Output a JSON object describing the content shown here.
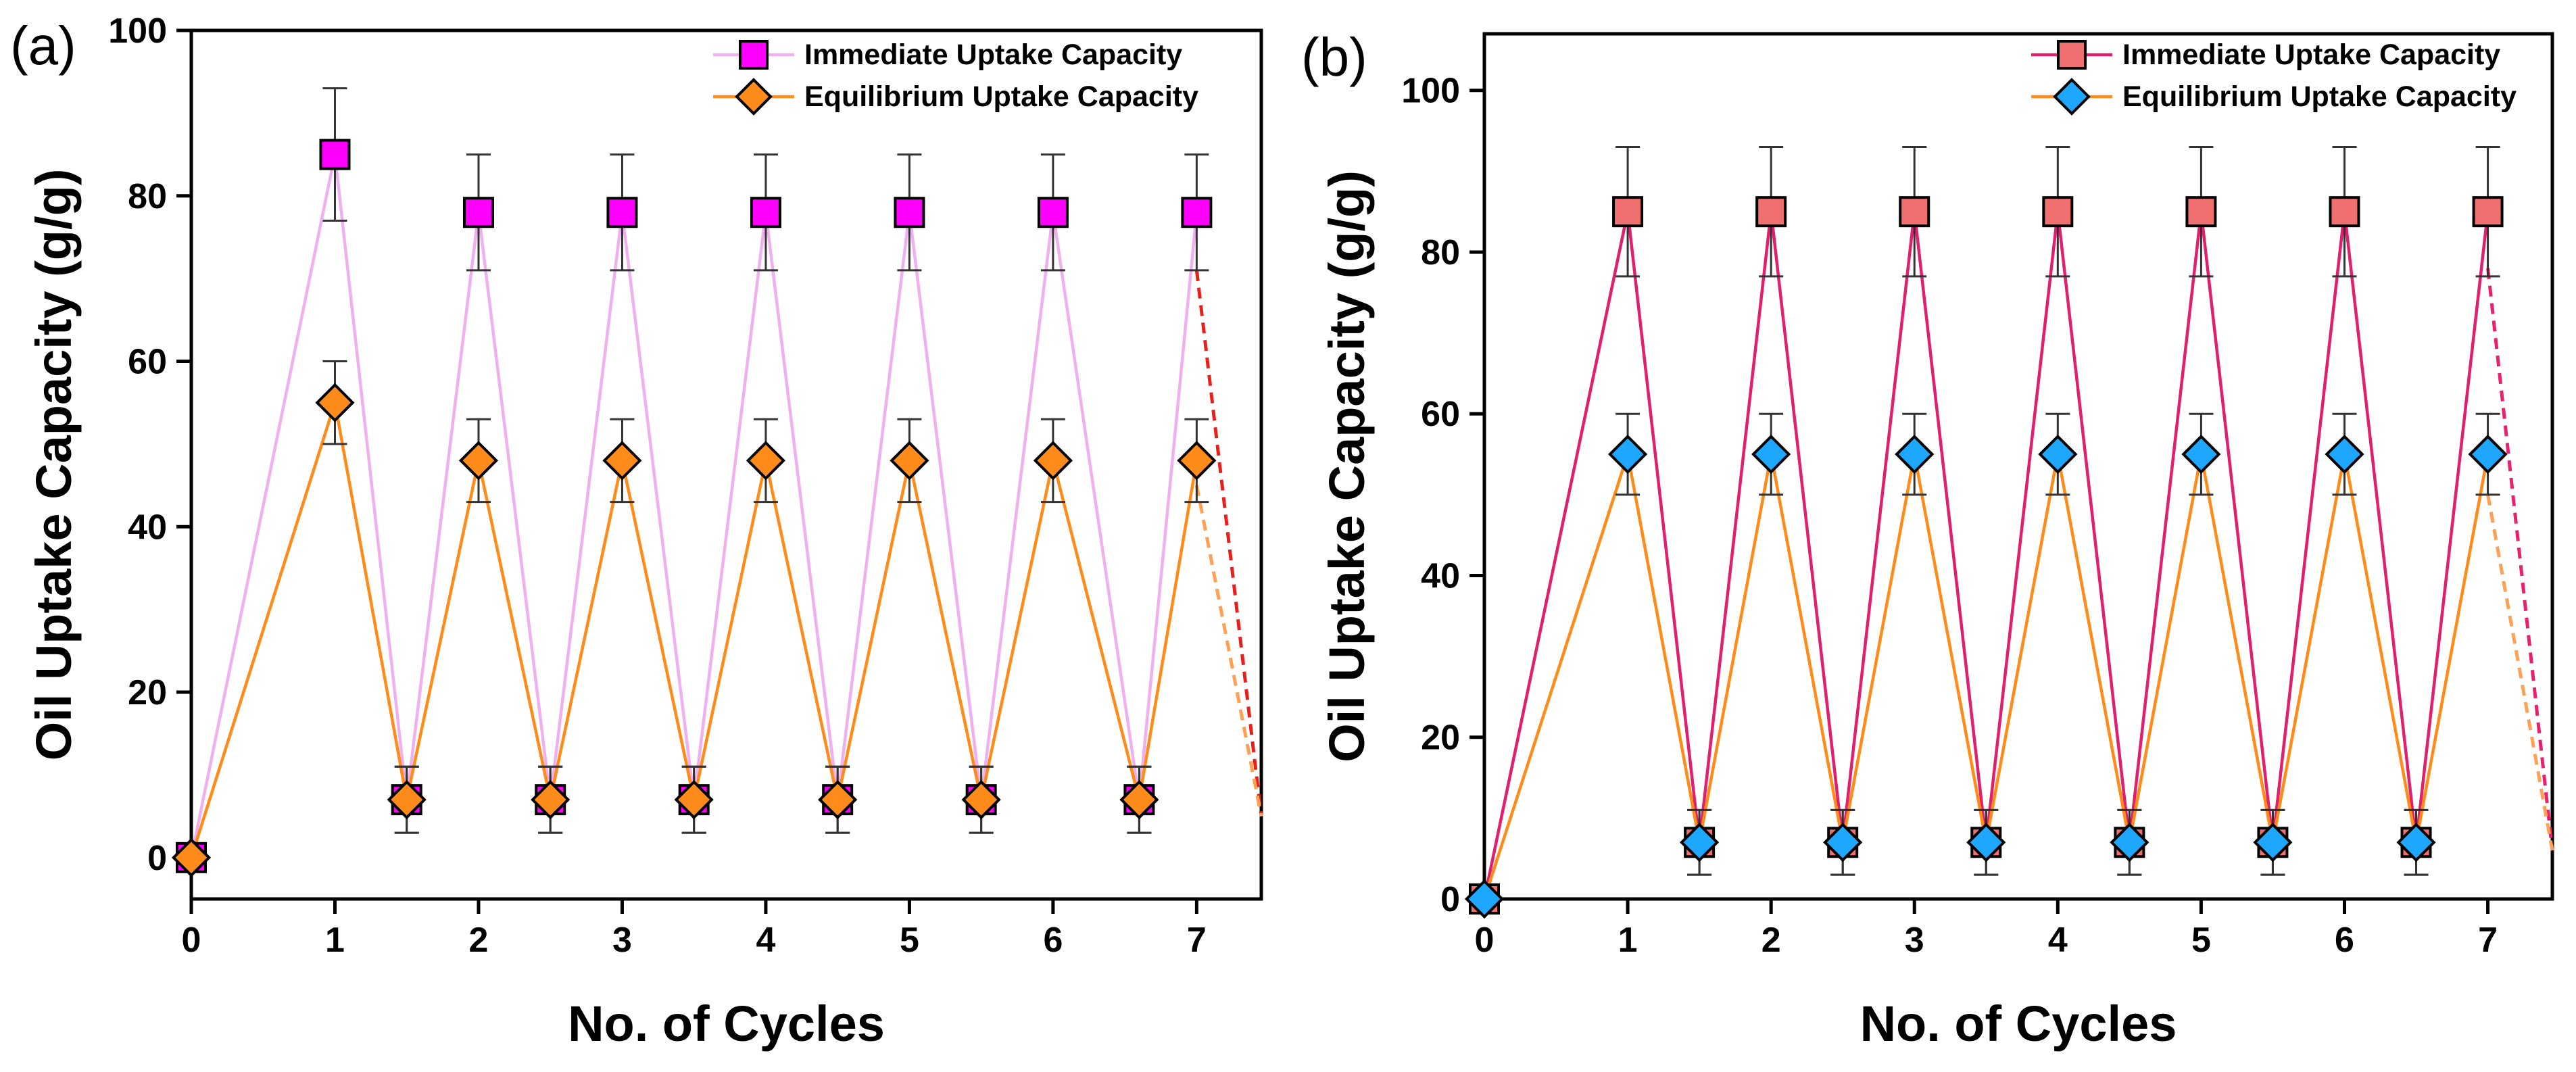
{
  "chart_data": [
    {
      "type": "line",
      "panel_label": "(a)",
      "xlabel": "No. of Cycles",
      "ylabel": "Oil Uptake Capacity (g/g)",
      "xlim": [
        0,
        7.45
      ],
      "ylim": [
        -5,
        100
      ],
      "xticks": [
        0,
        1,
        2,
        3,
        4,
        5,
        6,
        7
      ],
      "xtick_labels": [
        "0",
        "1",
        "2",
        "3",
        "4",
        "5",
        "6",
        "7"
      ],
      "yticks": [
        0,
        20,
        40,
        60,
        80,
        100
      ],
      "ytick_labels": [
        "0",
        "20",
        "40",
        "60",
        "80",
        "100"
      ],
      "grid": false,
      "legend_position": "top-right",
      "series": [
        {
          "name": "Immediate Uptake Capacity",
          "marker": "square",
          "marker_fill": "#ff00ff",
          "line_color": "#f0b0f0",
          "x": [
            0,
            1,
            1.5,
            2,
            2.5,
            3,
            3.5,
            4,
            4.5,
            5,
            5.5,
            6,
            6.6,
            7
          ],
          "y": [
            0,
            85,
            7,
            78,
            7,
            78,
            7,
            78,
            7,
            78,
            7,
            78,
            7,
            78
          ],
          "error": [
            0,
            8,
            4,
            7,
            4,
            7,
            4,
            7,
            4,
            7,
            4,
            7,
            4,
            7
          ],
          "extrapolation": {
            "x": [
              7,
              7.45
            ],
            "y": [
              71,
              5
            ],
            "color": "#e8201c"
          }
        },
        {
          "name": "Equilibrium Uptake Capacity",
          "marker": "diamond",
          "marker_fill": "#ff8c1a",
          "line_color": "#ff8c1a",
          "x": [
            0,
            1,
            1.5,
            2,
            2.5,
            3,
            3.5,
            4,
            4.5,
            5,
            5.5,
            6,
            6.6,
            7
          ],
          "y": [
            0,
            55,
            7,
            48,
            7,
            48,
            7,
            48,
            7,
            48,
            7,
            48,
            7,
            48
          ],
          "error": [
            0,
            5,
            4,
            5,
            4,
            5,
            4,
            5,
            4,
            5,
            4,
            5,
            4,
            5
          ],
          "extrapolation": {
            "x": [
              7,
              7.45
            ],
            "y": [
              45,
              5
            ],
            "color": "#ffa055"
          }
        }
      ]
    },
    {
      "type": "line",
      "panel_label": "(b)",
      "xlabel": "No. of Cycles",
      "ylabel": "Oil Uptake Capacity (g/g)",
      "xlim": [
        0,
        7.45
      ],
      "ylim": [
        0,
        107
      ],
      "xticks": [
        0,
        1,
        2,
        3,
        4,
        5,
        6,
        7
      ],
      "xtick_labels": [
        "0",
        "1",
        "2",
        "3",
        "4",
        "5",
        "6",
        "7"
      ],
      "yticks": [
        0,
        20,
        40,
        60,
        80,
        100
      ],
      "ytick_labels": [
        "0",
        "20",
        "40",
        "60",
        "80",
        "100"
      ],
      "grid": false,
      "legend_position": "top-right",
      "series": [
        {
          "name": "Immediate Uptake Capacity",
          "marker": "square",
          "marker_fill": "#f07070",
          "line_color": "#e0206e",
          "x": [
            0,
            1,
            1.5,
            2,
            2.5,
            3,
            3.5,
            4,
            4.5,
            5,
            5.5,
            6,
            6.5,
            7
          ],
          "y": [
            0,
            85,
            7,
            85,
            7,
            85,
            7,
            85,
            7,
            85,
            7,
            85,
            7,
            85
          ],
          "error": [
            0,
            8,
            4,
            8,
            4,
            8,
            4,
            8,
            4,
            8,
            4,
            8,
            4,
            8
          ],
          "extrapolation": {
            "x": [
              7,
              7.45
            ],
            "y": [
              78,
              6
            ],
            "color": "#e8206e"
          }
        },
        {
          "name": "Equilibrium Uptake Capacity",
          "marker": "diamond",
          "marker_fill": "#1ea7ff",
          "line_color": "#ff8c1a",
          "x": [
            0,
            1,
            1.5,
            2,
            2.5,
            3,
            3.5,
            4,
            4.5,
            5,
            5.5,
            6,
            6.5,
            7
          ],
          "y": [
            0,
            55,
            7,
            55,
            7,
            55,
            7,
            55,
            7,
            55,
            7,
            55,
            7,
            55
          ],
          "error": [
            0,
            5,
            4,
            5,
            4,
            5,
            4,
            5,
            4,
            5,
            4,
            5,
            4,
            5
          ],
          "extrapolation": {
            "x": [
              7,
              7.45
            ],
            "y": [
              50,
              6
            ],
            "color": "#ffa055"
          }
        }
      ]
    }
  ]
}
